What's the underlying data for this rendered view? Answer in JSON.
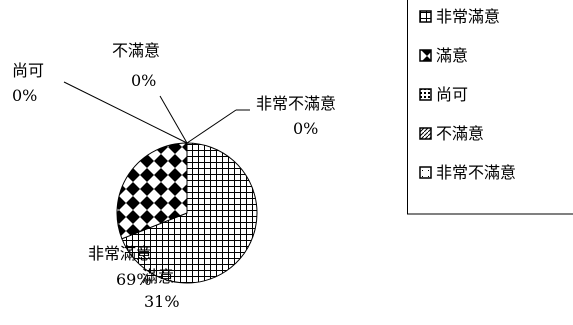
{
  "chart_data": {
    "type": "pie",
    "categories": [
      "非常滿意",
      "滿意",
      "尚可",
      "不滿意",
      "非常不滿意"
    ],
    "values": [
      69,
      31,
      0,
      0,
      0
    ],
    "data_labels": [
      {
        "name": "非常滿意",
        "percent": "69%"
      },
      {
        "name": "滿意",
        "percent": "31%"
      },
      {
        "name": "尚可",
        "percent": "0%"
      },
      {
        "name": "不滿意",
        "percent": "0%"
      },
      {
        "name": "非常不滿意",
        "percent": "0%"
      }
    ],
    "patterns": [
      "square-grid",
      "diamond-check",
      "fine-dots",
      "diagonal-hatch",
      "light-dots"
    ],
    "legend": {
      "position": "right",
      "entries": [
        "非常滿意",
        "滿意",
        "尚可",
        "不滿意",
        "非常不滿意"
      ]
    }
  }
}
